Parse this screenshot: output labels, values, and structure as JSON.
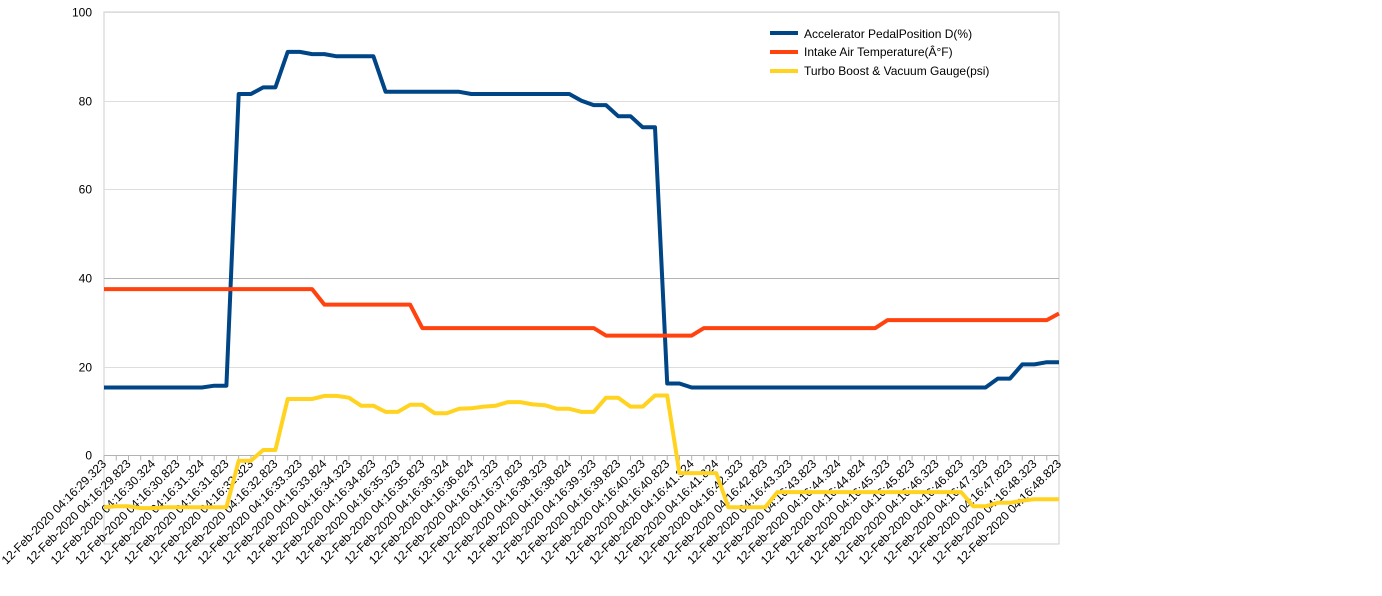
{
  "chart_data": {
    "type": "line",
    "title": "",
    "xlabel": "",
    "ylabel": "",
    "ylim": [
      -20,
      100
    ],
    "yticks": [
      0,
      20,
      40,
      60,
      80,
      100
    ],
    "grid": true,
    "legend_position": "top-right",
    "x_labels": [
      "12-Feb-2020 04:16:29.323",
      "12-Feb-2020 04:16:29.823",
      "12-Feb-2020 04:16:30.324",
      "12-Feb-2020 04:16:30.823",
      "12-Feb-2020 04:16:31.324",
      "12-Feb-2020 04:16:31.823",
      "12-Feb-2020 04:16:32.323",
      "12-Feb-2020 04:16:32.823",
      "12-Feb-2020 04:16:33.323",
      "12-Feb-2020 04:16:33.824",
      "12-Feb-2020 04:16:34.323",
      "12-Feb-2020 04:16:34.823",
      "12-Feb-2020 04:16:35.323",
      "12-Feb-2020 04:16:35.823",
      "12-Feb-2020 04:16:36.324",
      "12-Feb-2020 04:16:36.824",
      "12-Feb-2020 04:16:37.323",
      "12-Feb-2020 04:16:37.823",
      "12-Feb-2020 04:16:38.323",
      "12-Feb-2020 04:16:38.824",
      "12-Feb-2020 04:16:39.323",
      "12-Feb-2020 04:16:39.823",
      "12-Feb-2020 04:16:40.323",
      "12-Feb-2020 04:16:40.823",
      "12-Feb-2020 04:16:41.324",
      "12-Feb-2020 04:16:41.824",
      "12-Feb-2020 04:16:42.323",
      "12-Feb-2020 04:16:42.823",
      "12-Feb-2020 04:16:43.323",
      "12-Feb-2020 04:16:43.823",
      "12-Feb-2020 04:16:44.324",
      "12-Feb-2020 04:16:44.824",
      "12-Feb-2020 04:16:45.323",
      "12-Feb-2020 04:16:45.823",
      "12-Feb-2020 04:16:46.323",
      "12-Feb-2020 04:16:46.823",
      "12-Feb-2020 04:16:47.323",
      "12-Feb-2020 04:16:47.823",
      "12-Feb-2020 04:16:48.323",
      "12-Feb-2020 04:16:48.823"
    ],
    "series": [
      {
        "name": "Accelerator PedalPosition D(%)",
        "color": "#004586",
        "values": [
          15.3,
          15.3,
          15.3,
          15.3,
          15.3,
          15.3,
          15.3,
          15.3,
          15.3,
          15.7,
          15.7,
          81.5,
          81.5,
          83,
          83,
          91,
          91,
          90.5,
          90.5,
          90,
          90,
          90,
          90,
          82,
          82,
          82,
          82,
          82,
          82,
          82,
          81.5,
          81.5,
          81.5,
          81.5,
          81.5,
          81.5,
          81.5,
          81.5,
          81.5,
          80,
          79,
          79,
          76.5,
          76.5,
          74,
          74,
          16.2,
          16.2,
          15.3,
          15.3,
          15.3,
          15.3,
          15.3,
          15.3,
          15.3,
          15.3,
          15.3,
          15.3,
          15.3,
          15.3,
          15.3,
          15.3,
          15.3,
          15.3,
          15.3,
          15.3,
          15.3,
          15.3,
          15.3,
          15.3,
          15.3,
          15.3,
          15.3,
          17.3,
          17.3,
          20.5,
          20.5,
          21,
          21
        ]
      },
      {
        "name": "Intake Air Temperature(Â°F)",
        "color": "#ff420e",
        "values": [
          37.5,
          37.5,
          37.5,
          37.5,
          37.5,
          37.5,
          37.5,
          37.5,
          37.5,
          37.5,
          37.5,
          37.5,
          37.5,
          37.5,
          37.5,
          37.5,
          37.5,
          37.5,
          34,
          34,
          34,
          34,
          34,
          34,
          34,
          34,
          28.7,
          28.7,
          28.7,
          28.7,
          28.7,
          28.7,
          28.7,
          28.7,
          28.7,
          28.7,
          28.7,
          28.7,
          28.7,
          28.7,
          28.7,
          27,
          27,
          27,
          27,
          27,
          27,
          27,
          27,
          28.7,
          28.7,
          28.7,
          28.7,
          28.7,
          28.7,
          28.7,
          28.7,
          28.7,
          28.7,
          28.7,
          28.7,
          28.7,
          28.7,
          28.7,
          30.5,
          30.5,
          30.5,
          30.5,
          30.5,
          30.5,
          30.5,
          30.5,
          30.5,
          30.5,
          30.5,
          30.5,
          30.5,
          30.5,
          32
        ]
      },
      {
        "name": "Turbo Boost & Vacuum Gauge(psi)",
        "color": "#ffd320",
        "values": [
          -11.7,
          -11.5,
          -11.5,
          -11.9,
          -11.9,
          -11.7,
          -11.7,
          -11.7,
          -11.7,
          -11.7,
          -11.7,
          -1.2,
          -1.2,
          1.2,
          1.2,
          12.7,
          12.7,
          12.7,
          13.4,
          13.4,
          13,
          11.2,
          11.2,
          9.8,
          9.8,
          11.4,
          11.4,
          9.5,
          9.5,
          10.5,
          10.6,
          11,
          11.2,
          12,
          12,
          11.5,
          11.3,
          10.5,
          10.5,
          9.8,
          9.8,
          13,
          13,
          11,
          11,
          13.5,
          13.5,
          -4,
          -4,
          -4,
          -4,
          -11.7,
          -11.7,
          -11.7,
          -11.7,
          -8.3,
          -8.3,
          -8.3,
          -8.3,
          -8.3,
          -8.3,
          -8.3,
          -8.3,
          -8.3,
          -8.3,
          -8.3,
          -8.3,
          -8.3,
          -8.3,
          -8.3,
          -8.3,
          -11.5,
          -11.5,
          -10.7,
          -10.7,
          -10.2,
          -9.9,
          -9.9,
          -9.9
        ]
      }
    ]
  }
}
